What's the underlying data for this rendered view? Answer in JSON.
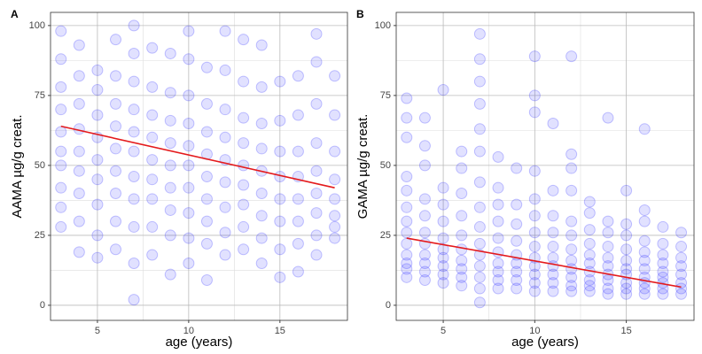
{
  "chart_data": [
    {
      "type": "scatter",
      "panel": "A",
      "xlabel": "age (years)",
      "ylabel": "AAMA µg/g creat.",
      "xlim": [
        2.43,
        18.7
      ],
      "ylim": [
        -5.4,
        104.7
      ],
      "xticks": [
        5,
        10,
        15
      ],
      "yticks": [
        0,
        25,
        50,
        75,
        100
      ],
      "grid": true,
      "color": "#1a1aff",
      "groups": [
        {
          "x": 3,
          "values": [
            28,
            35,
            42,
            50,
            55,
            62,
            70,
            78,
            88,
            98
          ]
        },
        {
          "x": 4,
          "values": [
            19,
            30,
            40,
            48,
            55,
            63,
            72,
            82,
            93
          ]
        },
        {
          "x": 5,
          "values": [
            17,
            25,
            36,
            45,
            52,
            60,
            68,
            77,
            84
          ]
        },
        {
          "x": 6,
          "values": [
            20,
            30,
            40,
            48,
            56,
            64,
            72,
            82,
            95
          ]
        },
        {
          "x": 7,
          "values": [
            2,
            15,
            28,
            38,
            46,
            55,
            62,
            70,
            80,
            90,
            100
          ]
        },
        {
          "x": 8,
          "values": [
            18,
            28,
            38,
            45,
            52,
            60,
            68,
            78,
            92
          ]
        },
        {
          "x": 9,
          "values": [
            11,
            25,
            34,
            42,
            50,
            58,
            66,
            76,
            90
          ]
        },
        {
          "x": 10,
          "values": [
            15,
            24,
            33,
            42,
            50,
            57,
            65,
            75,
            88,
            98
          ]
        },
        {
          "x": 11,
          "values": [
            9,
            22,
            30,
            38,
            46,
            54,
            62,
            72,
            85
          ]
        },
        {
          "x": 12,
          "values": [
            18,
            26,
            35,
            44,
            52,
            60,
            70,
            84,
            98
          ]
        },
        {
          "x": 13,
          "values": [
            20,
            28,
            36,
            43,
            50,
            58,
            67,
            80,
            95
          ]
        },
        {
          "x": 14,
          "values": [
            15,
            24,
            32,
            40,
            48,
            56,
            65,
            78,
            93
          ]
        },
        {
          "x": 15,
          "values": [
            10,
            20,
            30,
            38,
            46,
            55,
            66,
            80
          ]
        },
        {
          "x": 16,
          "values": [
            12,
            22,
            30,
            38,
            46,
            55,
            68,
            82
          ]
        },
        {
          "x": 17,
          "values": [
            18,
            25,
            33,
            40,
            48,
            58,
            72,
            87,
            97
          ]
        },
        {
          "x": 18,
          "values": [
            24,
            28,
            32,
            38,
            45,
            55,
            68,
            82
          ]
        }
      ],
      "fit": {
        "color": "#e41a1c",
        "x": [
          3,
          18
        ],
        "y": [
          64,
          42
        ]
      }
    },
    {
      "type": "scatter",
      "panel": "B",
      "xlabel": "age (years)",
      "ylabel": "GAMA µg/g creat.",
      "xlim": [
        2.43,
        18.7
      ],
      "ylim": [
        -5.4,
        104.7
      ],
      "xticks": [
        5,
        10,
        15
      ],
      "yticks": [
        0,
        25,
        50,
        75,
        100
      ],
      "grid": true,
      "color": "#1a1aff",
      "groups": [
        {
          "x": 3,
          "values": [
            10,
            13,
            15,
            18,
            22,
            26,
            30,
            35,
            41,
            46,
            60,
            67,
            74
          ]
        },
        {
          "x": 4,
          "values": [
            9,
            12,
            15,
            18,
            22,
            26,
            32,
            38,
            50,
            57,
            67
          ]
        },
        {
          "x": 5,
          "values": [
            8,
            11,
            14,
            17,
            20,
            24,
            30,
            36,
            42,
            77
          ]
        },
        {
          "x": 6,
          "values": [
            7,
            10,
            13,
            16,
            20,
            25,
            32,
            40,
            49,
            55
          ]
        },
        {
          "x": 7,
          "values": [
            1,
            6,
            10,
            14,
            18,
            22,
            28,
            35,
            44,
            55,
            63,
            72,
            80,
            88,
            97
          ]
        },
        {
          "x": 8,
          "values": [
            6,
            9,
            12,
            15,
            19,
            24,
            30,
            36,
            42,
            53
          ]
        },
        {
          "x": 9,
          "values": [
            6,
            9,
            12,
            15,
            18,
            23,
            29,
            36,
            49
          ]
        },
        {
          "x": 10,
          "values": [
            5,
            8,
            11,
            14,
            17,
            21,
            26,
            32,
            38,
            48,
            69,
            75,
            89
          ]
        },
        {
          "x": 11,
          "values": [
            5,
            8,
            11,
            14,
            17,
            21,
            26,
            32,
            41,
            65
          ]
        },
        {
          "x": 12,
          "values": [
            5,
            7,
            10,
            13,
            16,
            20,
            25,
            30,
            41,
            49,
            54,
            89
          ]
        },
        {
          "x": 13,
          "values": [
            5,
            7,
            9,
            12,
            15,
            18,
            22,
            27,
            33,
            37
          ]
        },
        {
          "x": 14,
          "values": [
            4,
            6,
            9,
            11,
            14,
            17,
            21,
            26,
            30,
            67
          ]
        },
        {
          "x": 15,
          "values": [
            4,
            6,
            8,
            11,
            13,
            16,
            20,
            25,
            29,
            41
          ]
        },
        {
          "x": 16,
          "values": [
            4,
            6,
            8,
            10,
            13,
            16,
            19,
            23,
            30,
            34,
            63
          ]
        },
        {
          "x": 17,
          "values": [
            4,
            6,
            8,
            10,
            12,
            15,
            18,
            22,
            28
          ]
        },
        {
          "x": 18,
          "values": [
            4,
            6,
            8,
            11,
            14,
            17,
            21,
            26
          ]
        }
      ],
      "fit": {
        "color": "#e41a1c",
        "x": [
          3,
          18
        ],
        "y": [
          24,
          6.5
        ]
      }
    }
  ]
}
